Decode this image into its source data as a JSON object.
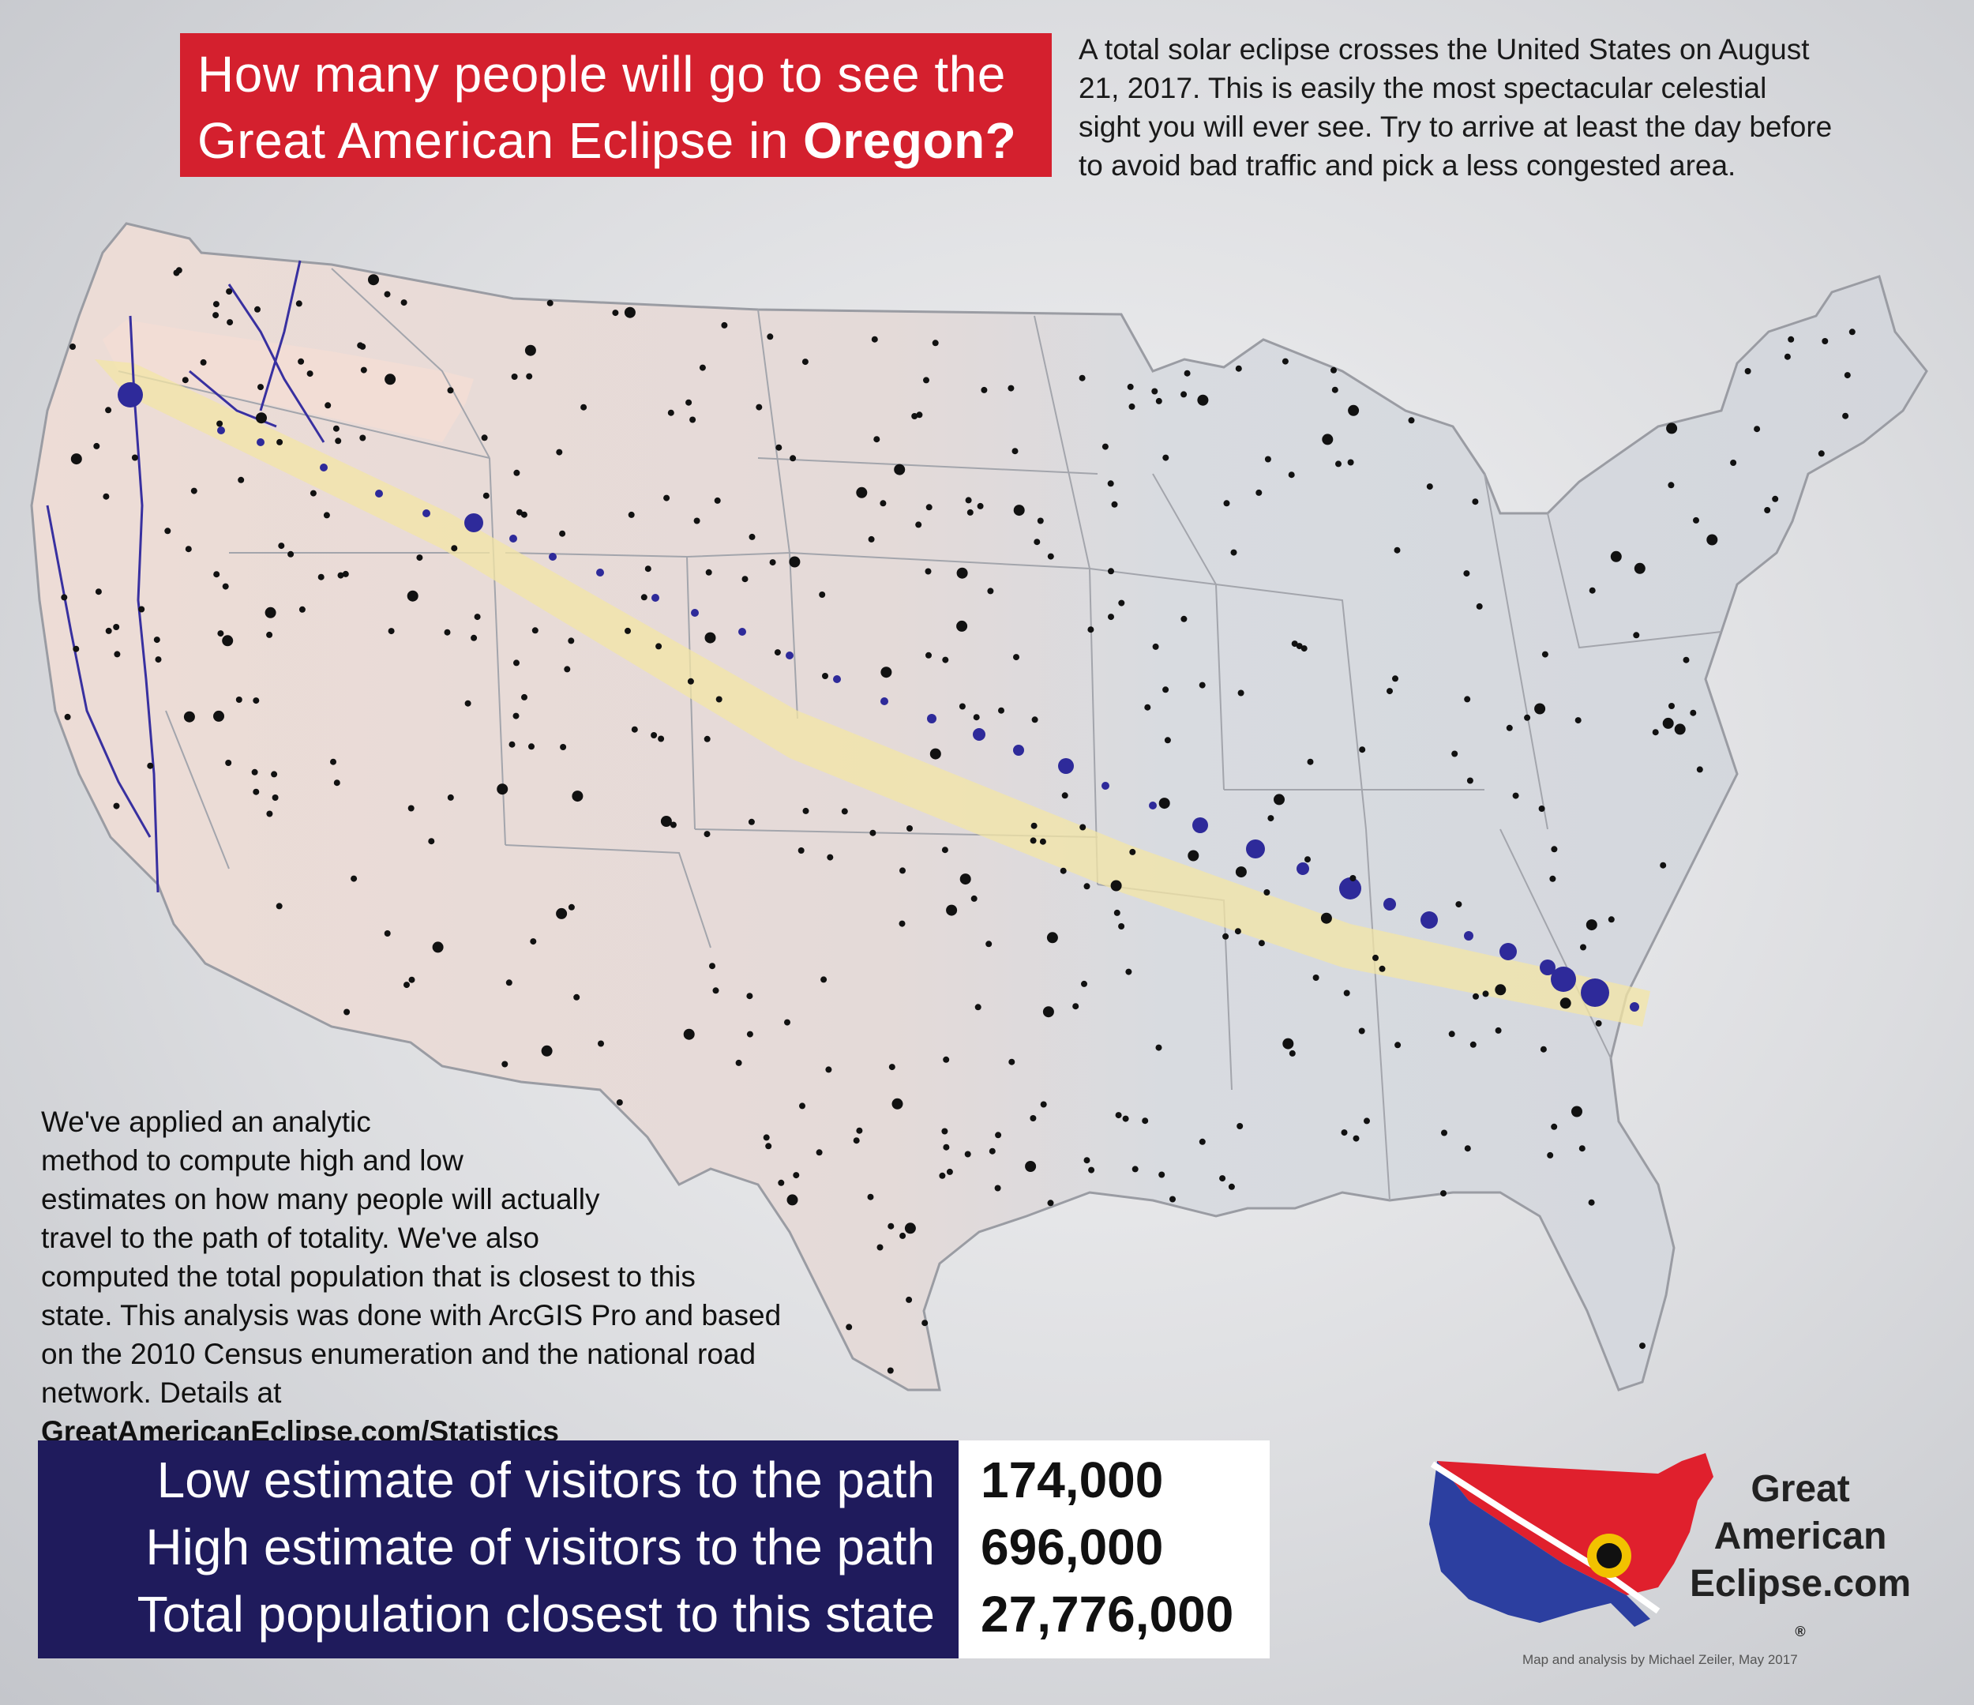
{
  "title": {
    "line1": "How many people will go to see the",
    "line2_prefix": "Great American Eclipse in ",
    "state": "Oregon?"
  },
  "intro": {
    "lines": [
      "A total solar eclipse crosses the United States on August",
      "21, 2017. This is easily the most spectacular celestial",
      "sight you will ever see. Try to arrive at least the day before",
      "to avoid bad traffic and pick a less congested area."
    ]
  },
  "method": {
    "lines": [
      "We've applied an analytic",
      "method to compute high and low",
      "estimates on how many people will actually",
      "travel to the path of totality. We've also",
      "computed the total population that is closest to this",
      "state. This analysis was done with ArcGIS Pro and based",
      "on the 2010 Census enumeration and the national road"
    ],
    "last_prefix": "network. Details at ",
    "link": "GreatAmericanEclipse.com/Statistics"
  },
  "stats": [
    {
      "label": "Low estimate of visitors to the path",
      "value": "174,000"
    },
    {
      "label": "High estimate of visitors to the path",
      "value": "696,000"
    },
    {
      "label": "Total population closest to this state",
      "value": "27,776,000"
    }
  ],
  "logo": {
    "line1": "Great",
    "line2": "American",
    "line3": "Eclipse.com",
    "reg": "®"
  },
  "credit": "Map and analysis by Michael Zeiler, May 2017",
  "colors": {
    "title_bg": "#d4202e",
    "stats_bg": "#1f1b5c",
    "path_band": "#f3e6a6",
    "route_blue": "#2e2a9a",
    "oregon_highlight": "#f1ddd6",
    "land": "#d9dbe0"
  }
}
